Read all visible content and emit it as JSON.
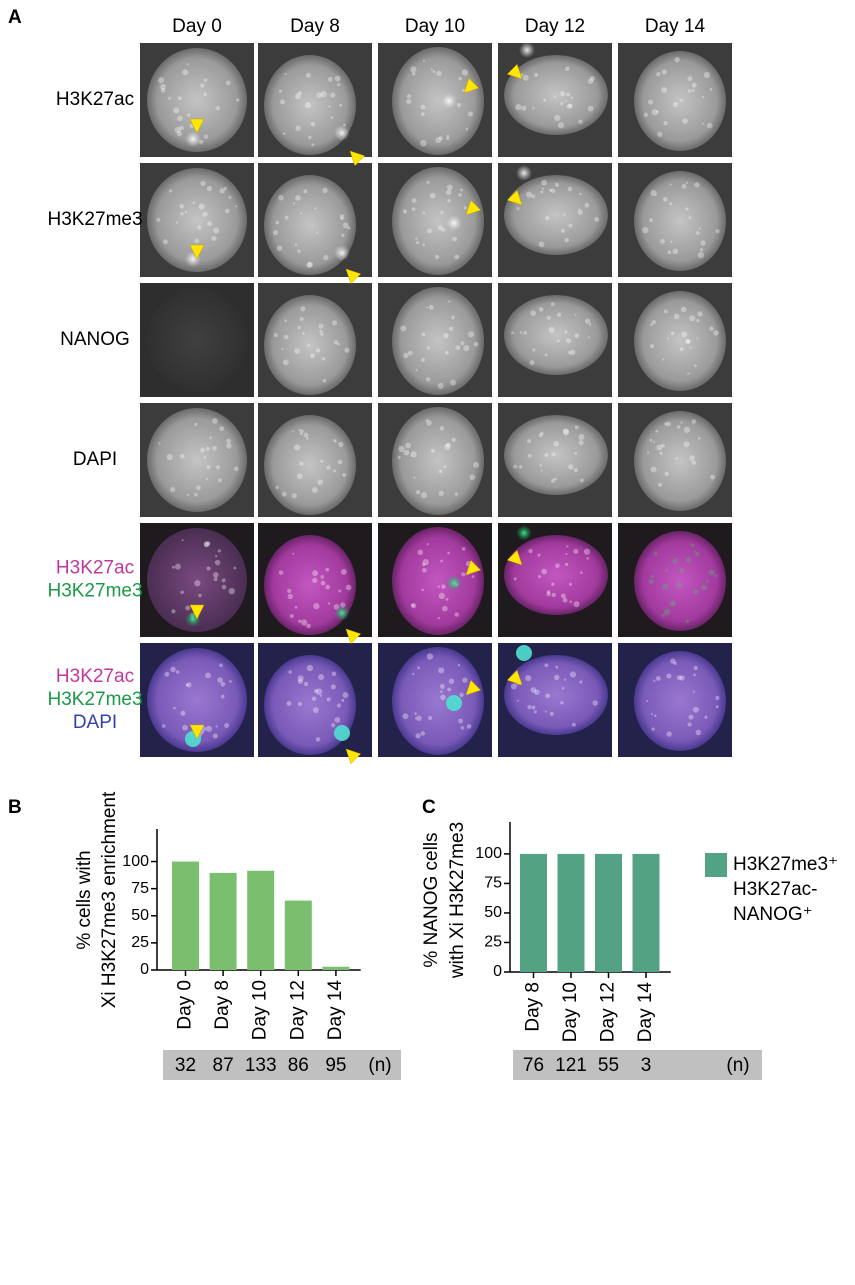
{
  "panel_a": {
    "label": "A",
    "columns": [
      "Day 0",
      "Day 8",
      "Day 10",
      "Day 12",
      "Day 14"
    ],
    "rows": [
      {
        "lines": [
          "H3K27ac"
        ],
        "colors": [
          "#000000"
        ]
      },
      {
        "lines": [
          "H3K27me3"
        ],
        "colors": [
          "#000000"
        ]
      },
      {
        "lines": [
          "NANOG"
        ],
        "colors": [
          "#000000"
        ]
      },
      {
        "lines": [
          "DAPI"
        ],
        "colors": [
          "#000000"
        ]
      },
      {
        "lines": [
          "H3K27ac",
          "H3K27me3"
        ],
        "colors": [
          "#c2379e",
          "#1a9a45"
        ]
      },
      {
        "lines": [
          "H3K27ac",
          "H3K27me3",
          "DAPI"
        ],
        "colors": [
          "#c2379e",
          "#1a9a45",
          "#3440b0"
        ]
      }
    ]
  },
  "chart_data": [
    {
      "type": "bar",
      "label": "B",
      "ylabel": [
        "% cells with",
        "Xi H3K27me3 enrichment"
      ],
      "categories": [
        "Day 0",
        "Day 8",
        "Day 10",
        "Day 12",
        "Day 14"
      ],
      "values": [
        100,
        89.5,
        91.5,
        64,
        3
      ],
      "color": "#79bf6e",
      "ylim": [
        0,
        130
      ],
      "yticks": [
        0,
        25,
        50,
        75,
        100
      ],
      "counts": [
        32,
        87,
        133,
        86,
        95
      ],
      "count_unit": "(n)"
    },
    {
      "type": "bar",
      "label": "C",
      "ylabel": [
        "% NANOG cells",
        "with Xi H3K27me3"
      ],
      "categories": [
        "Day 8",
        "Day 10",
        "Day 12",
        "Day 14"
      ],
      "series": [
        {
          "name": [
            "H3K27me3⁺",
            "H3K27ac-",
            "NANOG⁺"
          ],
          "color": "#52a283",
          "values": [
            100,
            100,
            100,
            100
          ]
        }
      ],
      "ylim": [
        0,
        127
      ],
      "yticks": [
        0,
        25,
        50,
        75,
        100
      ],
      "counts": [
        76,
        121,
        55,
        3
      ],
      "count_unit": "(n)"
    }
  ]
}
